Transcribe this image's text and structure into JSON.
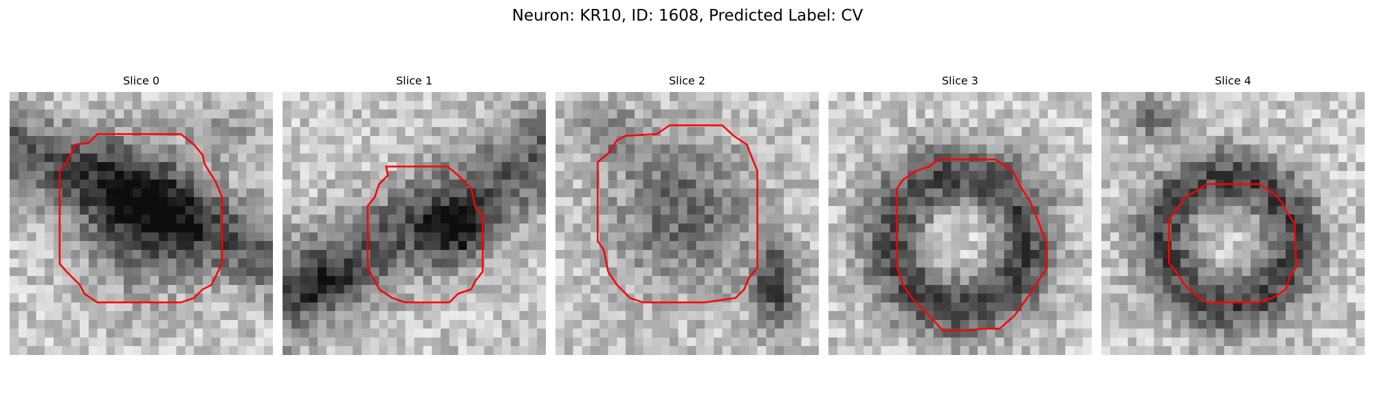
{
  "figure": {
    "suptitle": "Neuron: KR10, ID: 1608, Predicted Label: CV"
  },
  "contour_color": "#ff0000",
  "grid_size": 30,
  "panels": [
    {
      "title": "Slice 0",
      "scene": "vesicle"
    },
    {
      "title": "Slice 1",
      "scene": "vesicle"
    },
    {
      "title": "Slice 2",
      "scene": "vesicle"
    },
    {
      "title": "Slice 3",
      "scene": "vesicle"
    },
    {
      "title": "Slice 4",
      "scene": "vesicle"
    }
  ]
}
